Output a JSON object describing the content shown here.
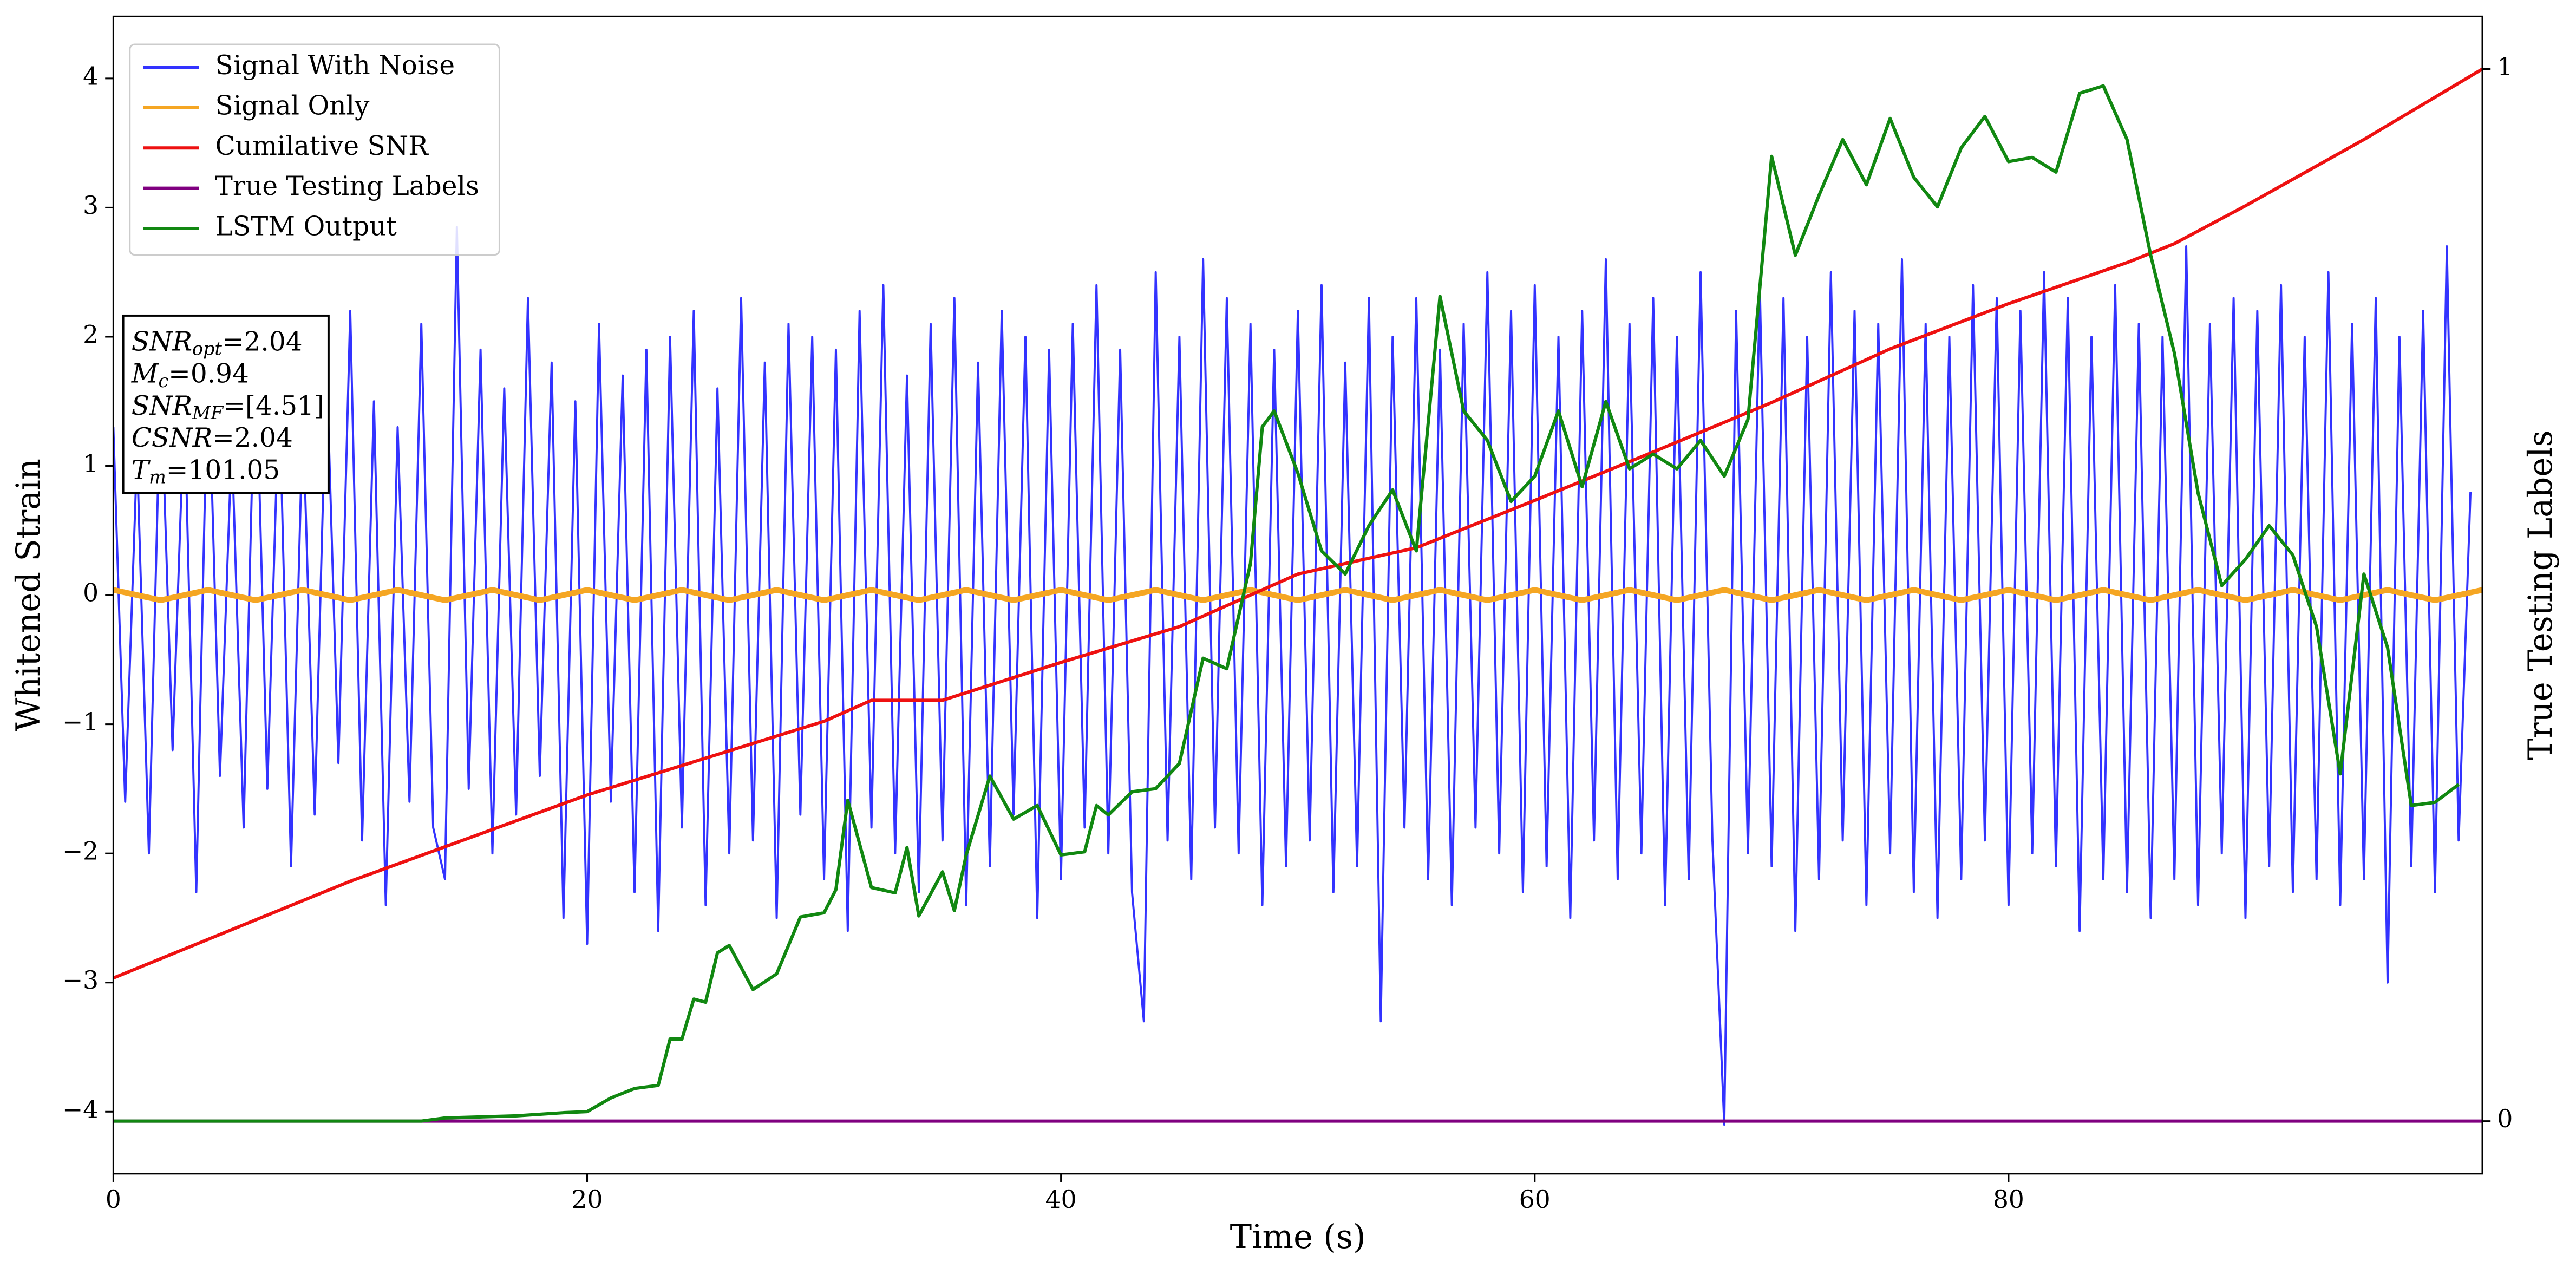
{
  "chart_data": {
    "type": "line",
    "xlabel": "Time (s)",
    "ylabel": "Whitened Strain",
    "y2label": "True Testing Labels",
    "xlim": [
      0,
      100
    ],
    "xticks": [
      0,
      20,
      40,
      60,
      80
    ],
    "ylim": [
      -4.48,
      4.48
    ],
    "yticks": [
      {
        "value": -4,
        "label": "−4"
      },
      {
        "value": -3,
        "label": "−3"
      },
      {
        "value": -2,
        "label": "−2"
      },
      {
        "value": -1,
        "label": "−1"
      },
      0,
      1,
      2,
      3,
      4
    ],
    "y2lim": [
      -0.05,
      1.05
    ],
    "y2ticks": [
      0,
      1
    ],
    "grid": false,
    "legend": "upper left",
    "annotation": [
      {
        "text": "SNR",
        "sub": "opt",
        "rest": "=2.04"
      },
      {
        "text": "M",
        "sub": "c",
        "rest": "=0.94"
      },
      {
        "text": "SNR",
        "sub": "MF",
        "rest": "=[4.51]"
      },
      {
        "text": "CSNR",
        "rest": "=2.04"
      },
      {
        "text": "T",
        "sub": "m",
        "rest": "=101.05"
      }
    ],
    "series": [
      {
        "name": "Signal With Noise",
        "color": "#3333ff",
        "axis": "y",
        "x": [
          0,
          0.5,
          1,
          1.5,
          2,
          2.5,
          3,
          3.5,
          4,
          4.5,
          5,
          5.5,
          6,
          6.5,
          7,
          7.5,
          8,
          8.5,
          9,
          9.5,
          10,
          10.5,
          11,
          11.5,
          12,
          12.5,
          13,
          13.5,
          14,
          14.5,
          15,
          15.5,
          16,
          16.5,
          17,
          17.5,
          18,
          18.5,
          19,
          19.5,
          20,
          20.5,
          21,
          21.5,
          22,
          22.5,
          23,
          23.5,
          24,
          24.5,
          25,
          25.5,
          26,
          26.5,
          27,
          27.5,
          28,
          28.5,
          29,
          29.5,
          30,
          30.5,
          31,
          31.5,
          32,
          32.5,
          33,
          33.5,
          34,
          34.5,
          35,
          35.5,
          36,
          36.5,
          37,
          37.5,
          38,
          38.5,
          39,
          39.5,
          40,
          40.5,
          41,
          41.5,
          42,
          42.5,
          43,
          43.5,
          44,
          44.5,
          45,
          45.5,
          46,
          46.5,
          47,
          47.5,
          48,
          48.5,
          49,
          49.5,
          50,
          50.5,
          51,
          51.5,
          52,
          52.5,
          53,
          53.5,
          54,
          54.5,
          55,
          55.5,
          56,
          56.5,
          57,
          57.5,
          58,
          58.5,
          59,
          59.5,
          60,
          60.5,
          61,
          61.5,
          62,
          62.5,
          63,
          63.5,
          64,
          64.5,
          65,
          65.5,
          66,
          66.5,
          67,
          67.5,
          68,
          68.5,
          69,
          69.5,
          70,
          70.5,
          71,
          71.5,
          72,
          72.5,
          73,
          73.5,
          74,
          74.5,
          75,
          75.5,
          76,
          76.5,
          77,
          77.5,
          78,
          78.5,
          79,
          79.5,
          80,
          80.5,
          81,
          81.5,
          82,
          82.5,
          83,
          83.5,
          84,
          84.5,
          85,
          85.5,
          86,
          86.5,
          87,
          87.5,
          88,
          88.5,
          89,
          89.5,
          90,
          90.5,
          91,
          91.5,
          92,
          92.5,
          93,
          93.5,
          94,
          94.5,
          95,
          95.5,
          96,
          96.5,
          97,
          97.5,
          98,
          98.5,
          99,
          99.5
        ],
        "values": [
          1.3,
          -1.6,
          1.1,
          -2.0,
          1.7,
          -1.2,
          1.5,
          -2.3,
          1.9,
          -1.4,
          1.2,
          -1.8,
          2.0,
          -1.5,
          1.6,
          -2.1,
          1.4,
          -1.7,
          1.8,
          -1.3,
          2.2,
          -1.9,
          1.5,
          -2.4,
          1.3,
          -1.6,
          2.1,
          -1.8,
          -2.2,
          2.85,
          -1.5,
          1.9,
          -2.0,
          1.6,
          -1.7,
          2.3,
          -1.4,
          1.8,
          -2.5,
          1.5,
          -2.7,
          2.1,
          -1.6,
          1.7,
          -2.3,
          1.9,
          -2.6,
          2.0,
          -1.8,
          2.2,
          -2.4,
          1.6,
          -2.0,
          2.3,
          -1.9,
          1.8,
          -2.5,
          2.1,
          -1.7,
          2.0,
          -2.2,
          1.9,
          -2.6,
          2.2,
          -1.8,
          2.4,
          -2.0,
          1.7,
          -2.3,
          2.1,
          -1.9,
          2.3,
          -2.4,
          1.8,
          -2.1,
          2.2,
          -1.7,
          2.0,
          -2.5,
          1.9,
          -2.2,
          2.1,
          -1.8,
          2.4,
          -2.0,
          1.9,
          -2.3,
          -3.3,
          2.5,
          -1.9,
          2.0,
          -2.2,
          2.6,
          -1.8,
          2.3,
          -2.0,
          2.1,
          -2.4,
          1.9,
          -2.1,
          2.2,
          -1.9,
          2.4,
          -2.3,
          1.8,
          -2.1,
          2.3,
          -3.3,
          2.0,
          -1.8,
          2.3,
          -2.2,
          1.9,
          -2.4,
          2.1,
          -1.8,
          2.5,
          -2.0,
          2.2,
          -2.3,
          2.4,
          -2.1,
          2.0,
          -2.5,
          2.2,
          -1.9,
          2.6,
          -2.2,
          2.1,
          -2.0,
          2.3,
          -2.4,
          2.0,
          -2.2,
          2.5,
          -1.9,
          -4.1,
          2.2,
          -2.0,
          2.4,
          -2.1,
          2.3,
          -2.6,
          2.0,
          -2.2,
          2.5,
          -1.9,
          2.2,
          -2.4,
          2.1,
          -2.0,
          2.6,
          -2.3,
          2.1,
          -2.5,
          2.0,
          -2.2,
          2.4,
          -1.9,
          2.3,
          -2.4,
          2.2,
          -2.0,
          2.5,
          -2.1,
          2.3,
          -2.6,
          2.0,
          -2.2,
          2.4,
          -2.3,
          2.1,
          -2.5,
          2.0,
          -2.2,
          2.7,
          -2.4,
          2.1,
          -2.0,
          2.3,
          -2.5,
          2.2,
          -2.1,
          2.4,
          -2.3,
          2.0,
          -2.2,
          2.5,
          -2.4,
          2.1,
          -2.2,
          2.3,
          -3.0,
          2.0,
          -2.1,
          2.2,
          -2.3,
          2.7,
          -1.9,
          0.8
        ]
      },
      {
        "name": "Signal Only",
        "color": "#f5a623",
        "axis": "y",
        "x": [
          0,
          2,
          4,
          6,
          8,
          10,
          12,
          14,
          16,
          18,
          20,
          22,
          24,
          26,
          28,
          30,
          32,
          34,
          36,
          38,
          40,
          42,
          44,
          46,
          48,
          50,
          52,
          54,
          56,
          58,
          60,
          62,
          64,
          66,
          68,
          70,
          72,
          74,
          76,
          78,
          80,
          82,
          84,
          86,
          88,
          90,
          92,
          94,
          96,
          98,
          100
        ],
        "values": [
          0.04,
          -0.04,
          0.04,
          -0.04,
          0.04,
          -0.04,
          0.04,
          -0.04,
          0.04,
          -0.04,
          0.04,
          -0.04,
          0.04,
          -0.04,
          0.04,
          -0.04,
          0.04,
          -0.04,
          0.04,
          -0.04,
          0.04,
          -0.04,
          0.04,
          -0.04,
          0.04,
          -0.04,
          0.04,
          -0.04,
          0.04,
          -0.04,
          0.04,
          -0.04,
          0.04,
          -0.04,
          0.04,
          -0.04,
          0.04,
          -0.04,
          0.04,
          -0.04,
          0.04,
          -0.04,
          0.04,
          -0.04,
          0.04,
          -0.04,
          0.04,
          -0.04,
          0.04,
          -0.04,
          0.04
        ]
      },
      {
        "name": "Cumilative SNR",
        "color": "#ee1111",
        "axis": "y2",
        "x": [
          0,
          10,
          20,
          30,
          32,
          35,
          40,
          45,
          50,
          55,
          60,
          65,
          70,
          75,
          80,
          85,
          87,
          90,
          95,
          100
        ],
        "values": [
          0.136,
          0.228,
          0.31,
          0.38,
          0.4,
          0.4,
          0.436,
          0.47,
          0.52,
          0.545,
          0.59,
          0.636,
          0.683,
          0.734,
          0.777,
          0.816,
          0.834,
          0.87,
          0.933,
          1.0
        ]
      },
      {
        "name": "True Testing Labels",
        "color": "#800080",
        "axis": "y2",
        "x": [
          0,
          100
        ],
        "values": [
          0,
          0
        ]
      },
      {
        "name": "LSTM Output",
        "color": "#118811",
        "axis": "y2",
        "x": [
          0,
          13,
          14,
          17,
          19,
          20,
          21,
          22,
          23,
          23.5,
          24,
          24.5,
          25,
          25.5,
          26,
          27,
          28,
          29,
          30,
          30.5,
          31,
          32,
          33,
          33.5,
          34,
          35,
          35.5,
          36,
          37,
          38,
          39,
          40,
          41,
          41.5,
          42,
          43,
          44,
          45,
          46,
          47,
          48,
          48.5,
          49,
          50,
          51,
          52,
          53,
          54,
          55,
          56,
          57,
          58,
          59,
          60,
          61,
          62,
          63,
          64,
          65,
          66,
          67,
          68,
          69,
          70,
          71,
          72,
          73,
          74,
          75,
          76,
          77,
          78,
          79,
          80,
          81,
          82,
          83,
          84,
          85,
          86,
          87,
          88,
          89,
          90,
          91,
          92,
          93,
          94,
          95,
          96,
          97,
          98,
          99
        ],
        "values": [
          0,
          0,
          0.003,
          0.005,
          0.008,
          0.009,
          0.022,
          0.031,
          0.034,
          0.078,
          0.078,
          0.116,
          0.113,
          0.16,
          0.167,
          0.125,
          0.14,
          0.194,
          0.198,
          0.22,
          0.305,
          0.222,
          0.217,
          0.26,
          0.195,
          0.237,
          0.2,
          0.253,
          0.328,
          0.287,
          0.3,
          0.253,
          0.256,
          0.3,
          0.291,
          0.313,
          0.316,
          0.34,
          0.44,
          0.43,
          0.53,
          0.66,
          0.675,
          0.616,
          0.542,
          0.52,
          0.566,
          0.6,
          0.542,
          0.784,
          0.675,
          0.647,
          0.589,
          0.613,
          0.675,
          0.603,
          0.684,
          0.62,
          0.634,
          0.62,
          0.647,
          0.613,
          0.667,
          0.917,
          0.823,
          0.88,
          0.933,
          0.89,
          0.953,
          0.897,
          0.869,
          0.925,
          0.955,
          0.912,
          0.916,
          0.902,
          0.977,
          0.984,
          0.933,
          0.823,
          0.73,
          0.597,
          0.509,
          0.534,
          0.566,
          0.538,
          0.47,
          0.33,
          0.52,
          0.45,
          0.3,
          0.303,
          0.32
        ]
      }
    ]
  }
}
